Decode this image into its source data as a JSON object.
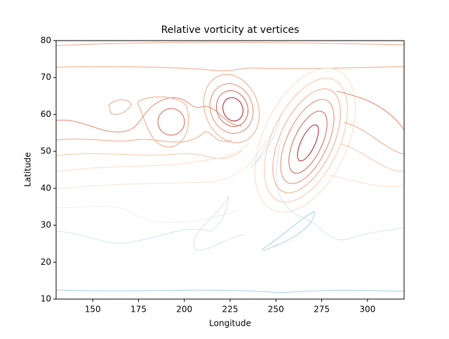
{
  "chart_data": {
    "type": "contour",
    "title": "Relative vorticity at vertices",
    "x_label": "Longitude",
    "y_label": "Latitude",
    "xlim": [
      130,
      320
    ],
    "xticks": [
      150,
      175,
      200,
      225,
      250,
      275,
      300
    ],
    "ylim": [
      10,
      80
    ],
    "yticks": [
      10,
      20,
      30,
      40,
      50,
      60,
      70,
      80
    ]
  }
}
